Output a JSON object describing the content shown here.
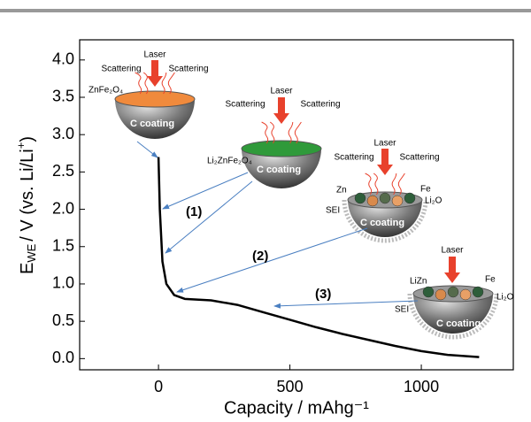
{
  "chart_data": {
    "type": "line",
    "x_label": "Capacity / mAhg⁻¹",
    "y_label": [
      "E",
      "WE",
      "/ V (vs. Li/Li",
      "+",
      ")"
    ],
    "xlim": [
      -300,
      1350
    ],
    "xticks": [
      0,
      500,
      1000
    ],
    "ylim": [
      -0.15,
      4.27
    ],
    "yticks": [
      {
        "value": 0,
        "label": "0.0"
      },
      0.5,
      {
        "value": 1,
        "label": "1.0"
      },
      1.5,
      {
        "value": 2,
        "label": "2.0"
      },
      2.5,
      {
        "value": 3,
        "label": "3.0"
      },
      3.5,
      {
        "value": 4,
        "label": "4.0"
      }
    ],
    "x": [
      0,
      5,
      15,
      30,
      60,
      100,
      200,
      300,
      400,
      500,
      600,
      700,
      800,
      900,
      1000,
      1100,
      1220
    ],
    "series": [
      {
        "color": "#000000",
        "values": [
          2.7,
          2.0,
          1.3,
          1.0,
          0.85,
          0.8,
          0.78,
          0.72,
          0.62,
          0.52,
          0.42,
          0.33,
          0.25,
          0.17,
          0.1,
          0.05,
          0.02
        ]
      }
    ],
    "annotations": {
      "stages": [
        "(1)",
        "(2)",
        "(3)"
      ],
      "illustrations": [
        {
          "laser": "Laser",
          "scattering": [
            "Scattering",
            "Scattering"
          ],
          "labels": [
            "ZnFe₂O₄"
          ],
          "coating": "C coating"
        },
        {
          "laser": "Laser",
          "scattering": [
            "Scattering",
            "Scattering"
          ],
          "labels": [
            "Li₂ZnFe₂O₄"
          ],
          "coating": "C coating"
        },
        {
          "laser": "Laser",
          "scattering": [
            "Scattering",
            "Scattering"
          ],
          "labels": [
            "Zn",
            "Fe",
            "Li₂O",
            "SEI"
          ],
          "coating": "C coating"
        },
        {
          "laser": "Laser",
          "labels": [
            "LiZn",
            "Fe",
            "Li₂O",
            "SEI"
          ],
          "coating": "C coating"
        }
      ]
    }
  }
}
